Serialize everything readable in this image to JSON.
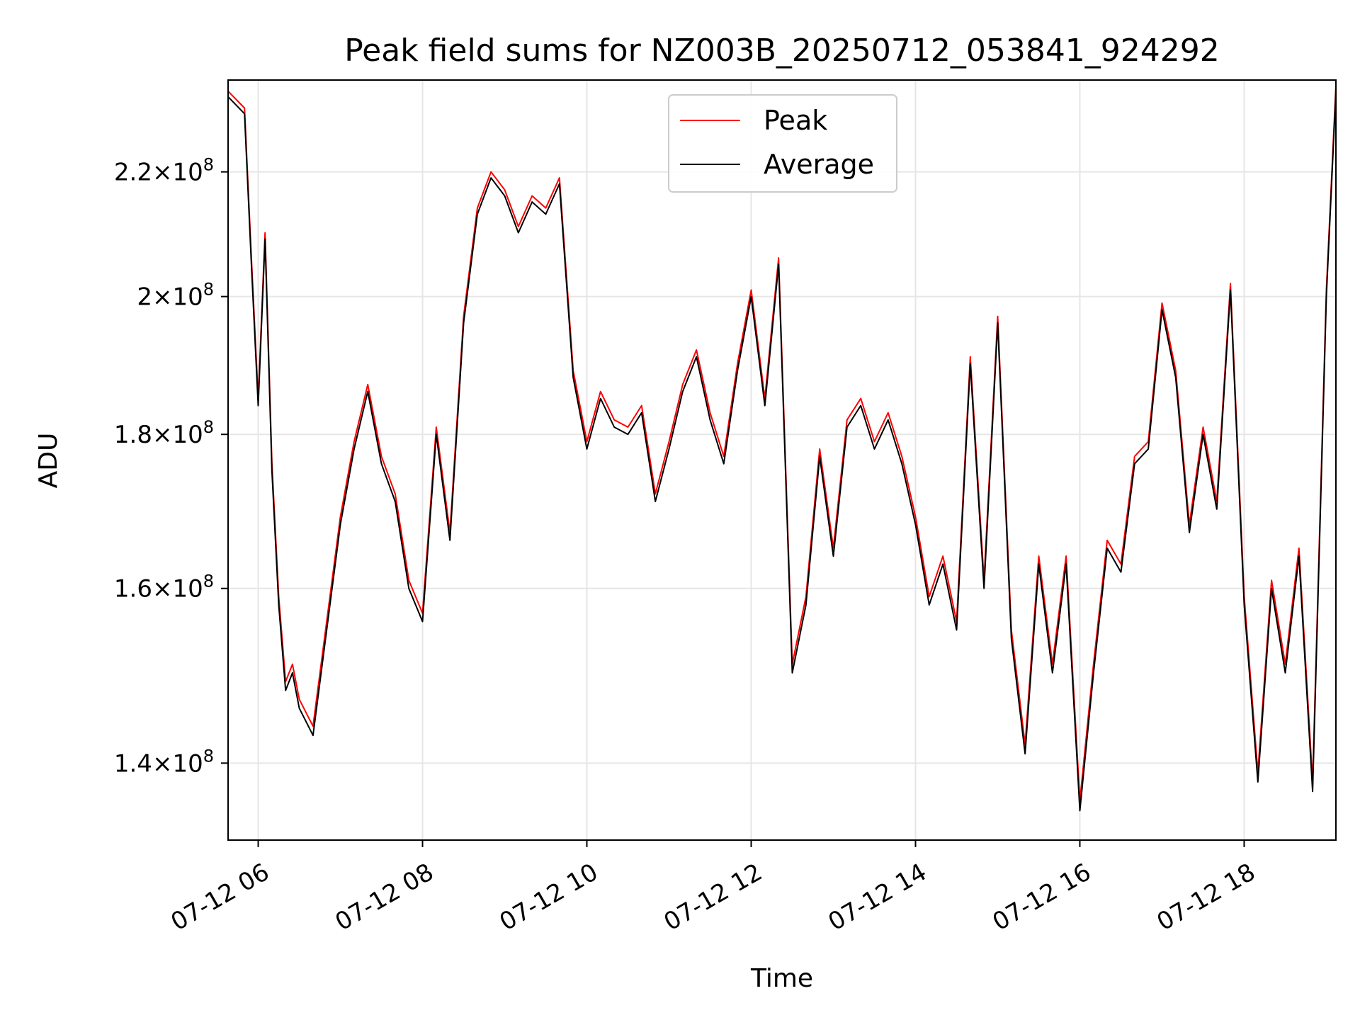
{
  "chart_data": {
    "type": "line",
    "title": "Peak field sums for NZ003B_20250712_053841_924292",
    "xlabel": "Time",
    "ylabel": "ADU",
    "y_scale": "log",
    "xlim": [
      "07-12 05:38",
      "07-12 19:07"
    ],
    "ylim": [
      132000000,
      236000000
    ],
    "grid": true,
    "legend_position": "top-center",
    "x_ticks": [
      "07-12 06",
      "07-12 08",
      "07-12 10",
      "07-12 12",
      "07-12 14",
      "07-12 16",
      "07-12 18"
    ],
    "y_ticks": [
      {
        "value": 140000000,
        "mantissa": "1.4",
        "exponent": "8"
      },
      {
        "value": 160000000,
        "mantissa": "1.6",
        "exponent": "8"
      },
      {
        "value": 180000000,
        "mantissa": "1.8",
        "exponent": "8"
      },
      {
        "value": 200000000,
        "mantissa": "2",
        "exponent": "8"
      },
      {
        "value": 220000000,
        "mantissa": "2.2",
        "exponent": "8"
      }
    ],
    "series": [
      {
        "name": "Peak",
        "color": "#ff0000"
      },
      {
        "name": "Average",
        "color": "#000000"
      }
    ],
    "x": [
      "07-12 05:38",
      "07-12 05:50",
      "07-12 05:55",
      "07-12 06:00",
      "07-12 06:05",
      "07-12 06:10",
      "07-12 06:15",
      "07-12 06:20",
      "07-12 06:25",
      "07-12 06:30",
      "07-12 06:40",
      "07-12 06:50",
      "07-12 07:00",
      "07-12 07:10",
      "07-12 07:20",
      "07-12 07:30",
      "07-12 07:40",
      "07-12 07:50",
      "07-12 08:00",
      "07-12 08:10",
      "07-12 08:20",
      "07-12 08:30",
      "07-12 08:40",
      "07-12 08:50",
      "07-12 09:00",
      "07-12 09:10",
      "07-12 09:20",
      "07-12 09:30",
      "07-12 09:40",
      "07-12 09:50",
      "07-12 10:00",
      "07-12 10:10",
      "07-12 10:20",
      "07-12 10:30",
      "07-12 10:40",
      "07-12 10:50",
      "07-12 11:00",
      "07-12 11:10",
      "07-12 11:20",
      "07-12 11:30",
      "07-12 11:40",
      "07-12 11:50",
      "07-12 12:00",
      "07-12 12:10",
      "07-12 12:20",
      "07-12 12:30",
      "07-12 12:40",
      "07-12 12:50",
      "07-12 13:00",
      "07-12 13:10",
      "07-12 13:20",
      "07-12 13:30",
      "07-12 13:40",
      "07-12 13:50",
      "07-12 14:00",
      "07-12 14:10",
      "07-12 14:20",
      "07-12 14:30",
      "07-12 14:40",
      "07-12 14:50",
      "07-12 15:00",
      "07-12 15:10",
      "07-12 15:20",
      "07-12 15:30",
      "07-12 15:40",
      "07-12 15:50",
      "07-12 16:00",
      "07-12 16:10",
      "07-12 16:20",
      "07-12 16:30",
      "07-12 16:40",
      "07-12 16:50",
      "07-12 17:00",
      "07-12 17:10",
      "07-12 17:20",
      "07-12 17:30",
      "07-12 17:40",
      "07-12 17:50",
      "07-12 18:00",
      "07-12 18:10",
      "07-12 18:20",
      "07-12 18:30",
      "07-12 18:40",
      "07-12 18:50",
      "07-12 19:00",
      "07-12 19:07"
    ],
    "average": [
      233000000,
      230000000,
      205000000,
      184000000,
      209000000,
      175000000,
      158000000,
      148000000,
      150000000,
      146000000,
      143000000,
      155000000,
      168000000,
      178000000,
      186000000,
      176000000,
      171000000,
      160000000,
      156000000,
      180000000,
      166000000,
      196000000,
      213000000,
      219000000,
      216000000,
      210000000,
      215000000,
      213000000,
      218000000,
      188000000,
      178000000,
      185000000,
      181000000,
      180000000,
      183000000,
      171000000,
      178000000,
      186000000,
      191000000,
      182000000,
      176000000,
      189000000,
      200000000,
      184000000,
      205000000,
      150000000,
      158000000,
      177000000,
      164000000,
      181000000,
      184000000,
      178000000,
      182000000,
      176000000,
      168000000,
      158000000,
      163000000,
      155000000,
      190000000,
      160000000,
      196000000,
      154000000,
      141000000,
      163000000,
      150000000,
      163000000,
      135000000,
      150000000,
      165000000,
      162000000,
      176000000,
      178000000,
      198000000,
      188000000,
      167000000,
      180000000,
      170000000,
      201000000,
      158000000,
      138000000,
      160000000,
      150000000,
      164000000,
      137000000,
      200000000,
      234000000
    ],
    "peak": [
      234000000,
      231000000,
      206000000,
      185000000,
      210000000,
      176000000,
      159000000,
      149000000,
      151000000,
      147000000,
      144000000,
      156000000,
      169000000,
      179000000,
      187000000,
      177000000,
      172000000,
      161000000,
      157000000,
      181000000,
      167000000,
      197000000,
      214000000,
      220000000,
      217000000,
      211000000,
      216000000,
      214000000,
      219000000,
      189000000,
      179000000,
      186000000,
      182000000,
      181000000,
      184000000,
      172000000,
      179000000,
      187000000,
      192000000,
      183000000,
      177000000,
      190000000,
      201000000,
      185000000,
      206000000,
      151000000,
      159000000,
      178000000,
      165000000,
      182000000,
      185000000,
      179000000,
      183000000,
      177000000,
      169000000,
      159000000,
      164000000,
      156000000,
      191000000,
      161000000,
      197000000,
      155000000,
      142000000,
      164000000,
      151000000,
      164000000,
      136000000,
      151000000,
      166000000,
      163000000,
      177000000,
      179000000,
      199000000,
      189000000,
      168000000,
      181000000,
      171000000,
      202000000,
      159000000,
      139000000,
      161000000,
      151000000,
      165000000,
      138000000,
      201000000,
      235000000
    ]
  }
}
